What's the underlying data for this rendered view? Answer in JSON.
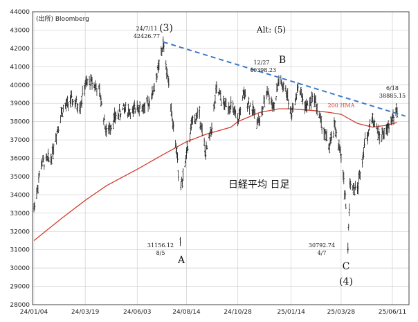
{
  "chart_data": {
    "type": "line",
    "title": "日経平均 日足",
    "source": "(出所) Bloomberg",
    "y_ticks": [
      28000,
      29000,
      30000,
      31000,
      32000,
      33000,
      34000,
      35000,
      36000,
      37000,
      38000,
      39000,
      40000,
      41000,
      42000,
      43000,
      44000
    ],
    "ylim": [
      28000,
      44000
    ],
    "x_ticks": [
      "24/01/04",
      "24/03/19",
      "24/06/03",
      "24/08/14",
      "24/10/28",
      "25/01/14",
      "25/03/28",
      "25/06/11"
    ],
    "grid": true,
    "series": [
      {
        "name": "",
        "style": "daily-bars",
        "color": "#222222",
        "x": [
          "24/01/04",
          "24/01/15",
          "24/01/29",
          "24/02/13",
          "24/02/27",
          "24/03/11",
          "24/03/19",
          "24/03/29",
          "24/04/09",
          "24/04/19",
          "24/05/01",
          "24/05/15",
          "24/05/28",
          "24/06/03",
          "24/06/14",
          "24/06/25",
          "24/07/04",
          "24/07/11",
          "24/07/19",
          "24/07/26",
          "24/08/01",
          "24/08/05",
          "24/08/06",
          "24/08/09",
          "24/08/14",
          "24/08/23",
          "24/09/02",
          "24/09/11",
          "24/09/20",
          "24/09/27",
          "24/10/08",
          "24/10/18",
          "24/10/28",
          "24/11/06",
          "24/11/19",
          "24/11/29",
          "24/12/10",
          "24/12/20",
          "24/12/27",
          "25/01/08",
          "25/01/14",
          "25/01/24",
          "25/02/05",
          "25/02/17",
          "25/02/27",
          "25/03/11",
          "25/03/19",
          "25/03/28",
          "25/04/03",
          "25/04/07",
          "25/04/10",
          "25/04/21",
          "25/05/01",
          "25/05/13",
          "25/05/23",
          "25/06/03",
          "25/06/11",
          "25/06/18"
        ],
        "values": [
          33300,
          35700,
          36000,
          38500,
          39200,
          38800,
          40000,
          40200,
          39600,
          37400,
          38200,
          38700,
          38500,
          38900,
          38700,
          39500,
          40900,
          42224,
          40100,
          37700,
          36000,
          31458,
          34500,
          35000,
          36200,
          38100,
          38400,
          36200,
          37700,
          39800,
          38900,
          38900,
          38000,
          39500,
          38600,
          38000,
          39700,
          38800,
          40281,
          39500,
          38400,
          39900,
          38800,
          39300,
          37900,
          36600,
          37800,
          36000,
          34000,
          31136,
          34600,
          34300,
          36800,
          38200,
          37200,
          37500,
          38200,
          38536
        ]
      },
      {
        "name": "200 HMA",
        "style": "line",
        "color": "#d23b2f",
        "x": [
          "24/01/04",
          "24/02/13",
          "24/03/19",
          "24/04/19",
          "24/06/03",
          "24/07/11",
          "24/08/14",
          "24/09/11",
          "24/10/18",
          "24/10/28",
          "24/11/29",
          "24/12/27",
          "25/01/14",
          "25/02/17",
          "25/03/11",
          "25/03/28",
          "25/04/21",
          "25/05/13",
          "25/06/03",
          "25/06/18"
        ],
        "values": [
          31500,
          32700,
          33700,
          34500,
          35400,
          36200,
          36900,
          37300,
          37700,
          38000,
          38500,
          38700,
          38700,
          38600,
          38500,
          38400,
          37900,
          37700,
          37800,
          37950
        ]
      },
      {
        "name": "",
        "style": "trendline-dashed",
        "color": "#3a78c9",
        "x": [
          "24/07/11",
          "25/06/30"
        ],
        "values": [
          42350,
          38300
        ]
      }
    ],
    "annotations": [
      {
        "text": "24/7/11",
        "x": "24/07/11",
        "y": 42426.77
      },
      {
        "text": "42426.77",
        "x": "24/07/11",
        "y": 42426.77
      },
      {
        "text": "(3)",
        "x": "24/07/11",
        "y": 42426.77
      },
      {
        "text": "Alt: (5)"
      },
      {
        "text": "12/27",
        "x": "24/12/27",
        "y": 40398.23
      },
      {
        "text": "40398.23",
        "x": "24/12/27",
        "y": 40398.23
      },
      {
        "text": "B",
        "x": "24/12/27",
        "y": 40398.23
      },
      {
        "text": "6/18",
        "x": "25/06/18",
        "y": 38885.15
      },
      {
        "text": "38885.15",
        "x": "25/06/18",
        "y": 38885.15
      },
      {
        "text": "200 HMA"
      },
      {
        "text": "31156.12",
        "x": "24/08/05",
        "y": 31156.12
      },
      {
        "text": "8/5",
        "x": "24/08/05",
        "y": 31156.12
      },
      {
        "text": "A",
        "x": "24/08/05",
        "y": 31156.12
      },
      {
        "text": "30792.74",
        "x": "25/04/07",
        "y": 30792.74
      },
      {
        "text": "4/7",
        "x": "25/04/07",
        "y": 30792.74
      },
      {
        "text": "C",
        "x": "25/04/07",
        "y": 30792.74
      },
      {
        "text": "(4)",
        "x": "25/04/07",
        "y": 30792.74
      }
    ]
  }
}
